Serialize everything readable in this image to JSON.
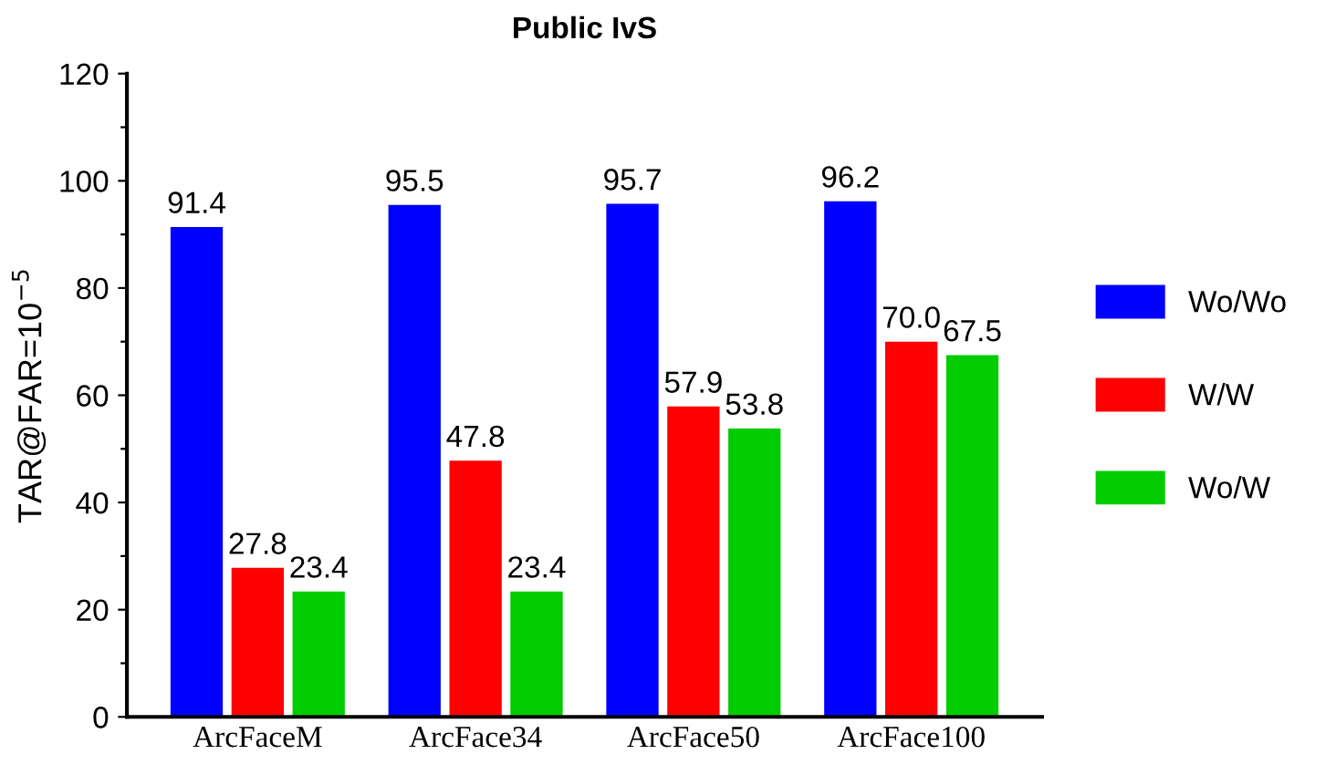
{
  "chart_data": {
    "type": "bar",
    "title": "Public IvS",
    "ylabel": "TAR@FAR=10$^{−5}$",
    "categories": [
      "ArcFaceM",
      "ArcFace34",
      "ArcFace50",
      "ArcFace100"
    ],
    "series": [
      {
        "name": "Wo/Wo",
        "color": "#0000ff",
        "values": [
          91.4,
          95.5,
          95.7,
          96.2
        ],
        "value_labels": [
          "91.4",
          "95.5",
          "95.7",
          "96.2"
        ]
      },
      {
        "name": "W/W",
        "color": "#ff0000",
        "values": [
          27.8,
          47.8,
          57.9,
          70
        ],
        "value_labels": [
          "27.8",
          "47.8",
          "57.9",
          "70.0"
        ]
      },
      {
        "name": "Wo/W",
        "color": "#00cc00",
        "values": [
          23.4,
          23.4,
          53.8,
          67.5
        ],
        "value_labels": [
          "23.4",
          "23.4",
          "53.8",
          "67.5"
        ]
      }
    ],
    "ylim": [
      0,
      120
    ],
    "yticks": [
      0,
      {
        "value": 10,
        "label": null
      },
      20,
      {
        "value": 30,
        "label": null
      },
      40,
      {
        "value": 50,
        "label": null
      },
      60,
      {
        "value": 70,
        "label": null
      },
      80,
      {
        "value": 90,
        "label": null
      },
      100,
      {
        "value": 110,
        "label": null
      },
      120
    ],
    "legend": "right",
    "grid": false
  }
}
